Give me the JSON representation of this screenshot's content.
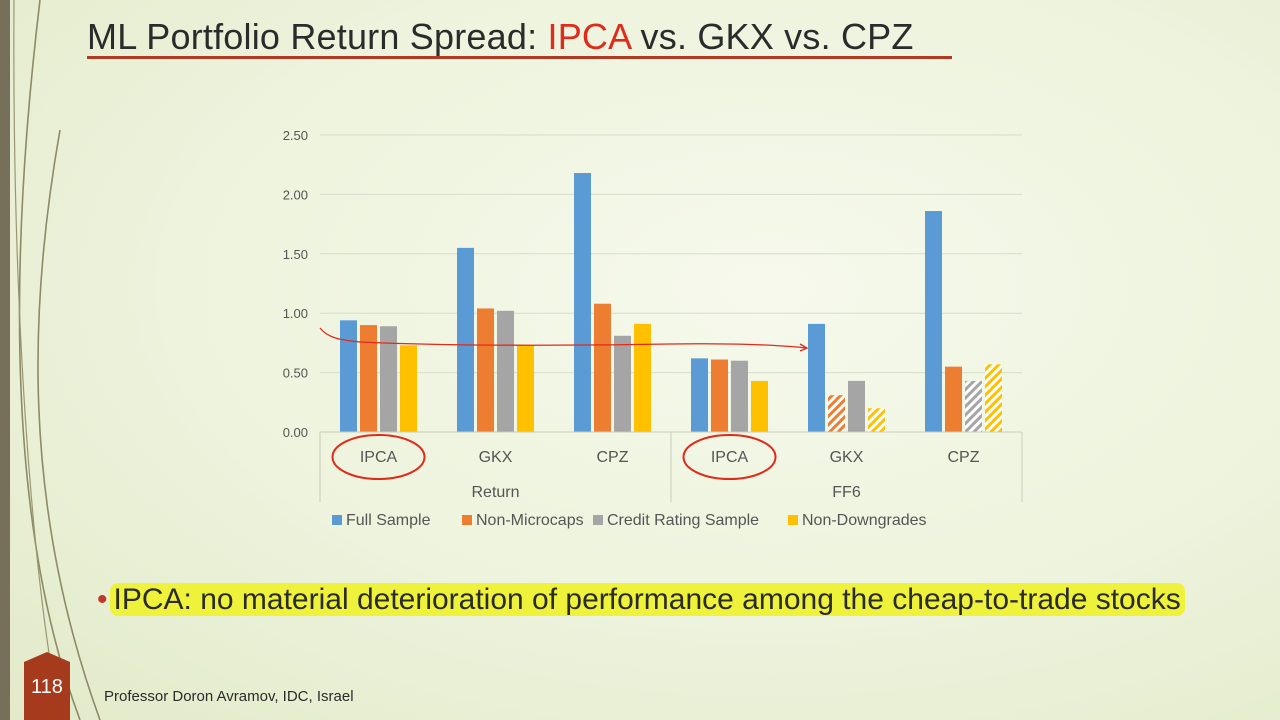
{
  "slide": {
    "title_prefix": "ML Portfolio Return Spread: ",
    "title_accent": "IPCA",
    "title_suffix": " vs. GKX vs. CPZ",
    "accent_color": "#e02a1a",
    "bullet_text": "IPCA: no material deterioration of performance among the cheap-to-trade stocks",
    "page_number": "118",
    "footer": "Professor Doron Avramov, IDC, Israel"
  },
  "chart_data": {
    "type": "bar",
    "groups": [
      {
        "label": "Return",
        "categories": [
          "IPCA",
          "GKX",
          "CPZ"
        ]
      },
      {
        "label": "FF6",
        "categories": [
          "IPCA",
          "GKX",
          "CPZ"
        ]
      }
    ],
    "series": [
      {
        "name": "Full Sample",
        "color": "#5b9bd5",
        "values": [
          0.94,
          1.55,
          2.18,
          0.62,
          0.91,
          1.86
        ],
        "hatched": [
          false,
          false,
          false,
          false,
          false,
          false
        ]
      },
      {
        "name": "Non-Microcaps",
        "color": "#ed7d31",
        "values": [
          0.9,
          1.04,
          1.08,
          0.61,
          0.31,
          0.55
        ],
        "hatched": [
          false,
          false,
          false,
          false,
          true,
          false
        ]
      },
      {
        "name": "Credit Rating Sample",
        "color": "#a5a5a5",
        "values": [
          0.89,
          1.02,
          0.81,
          0.6,
          0.43,
          0.43
        ],
        "hatched": [
          false,
          false,
          false,
          false,
          false,
          true
        ]
      },
      {
        "name": "Non-Downgrades",
        "color": "#ffc000",
        "values": [
          0.73,
          0.73,
          0.91,
          0.43,
          0.2,
          0.57
        ],
        "hatched": [
          false,
          false,
          false,
          false,
          true,
          true
        ]
      }
    ],
    "yticks": [
      "0.00",
      "0.50",
      "1.00",
      "1.50",
      "2.00",
      "2.50"
    ],
    "ylim": [
      0,
      2.5
    ],
    "grid": true,
    "legend": "bottom",
    "circled_categories": [
      "Return-IPCA",
      "FF6-IPCA"
    ]
  }
}
